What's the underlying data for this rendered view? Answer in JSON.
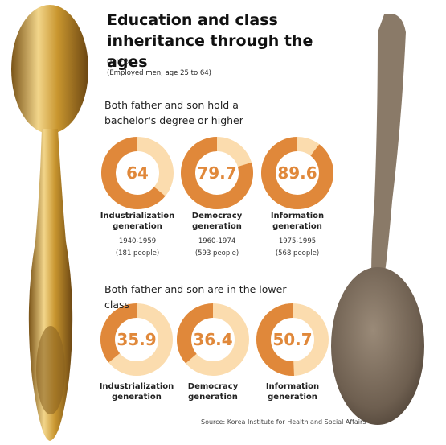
{
  "title": "Education and class inheritance through the ages",
  "unit": "Unit: %",
  "note": "(Employed men, age 25 to 64)",
  "source": "Source: Korea Institute for Health and Social Affairs",
  "chart_data": [
    {
      "type": "donut",
      "subtitle": "Both father and son hold a bachelor's degree or higher",
      "categories": [
        "Industrialization generation",
        "Democracy generation",
        "Information generation"
      ],
      "years": [
        "1940-1959",
        "1960-1974",
        "1975-1995"
      ],
      "sample": [
        "(181 people)",
        "(593 people)",
        "(568 people)"
      ],
      "values": [
        64,
        79.7,
        89.6
      ],
      "color": "#e0883a",
      "track_color": "#fbdcae"
    },
    {
      "type": "donut",
      "subtitle": "Both father and son are in the lower class",
      "categories": [
        "Industrialization generation",
        "Democracy generation",
        "Information generation"
      ],
      "values": [
        35.9,
        36.4,
        50.7
      ],
      "color": "#e0883a",
      "track_color": "#fbdcae"
    }
  ]
}
